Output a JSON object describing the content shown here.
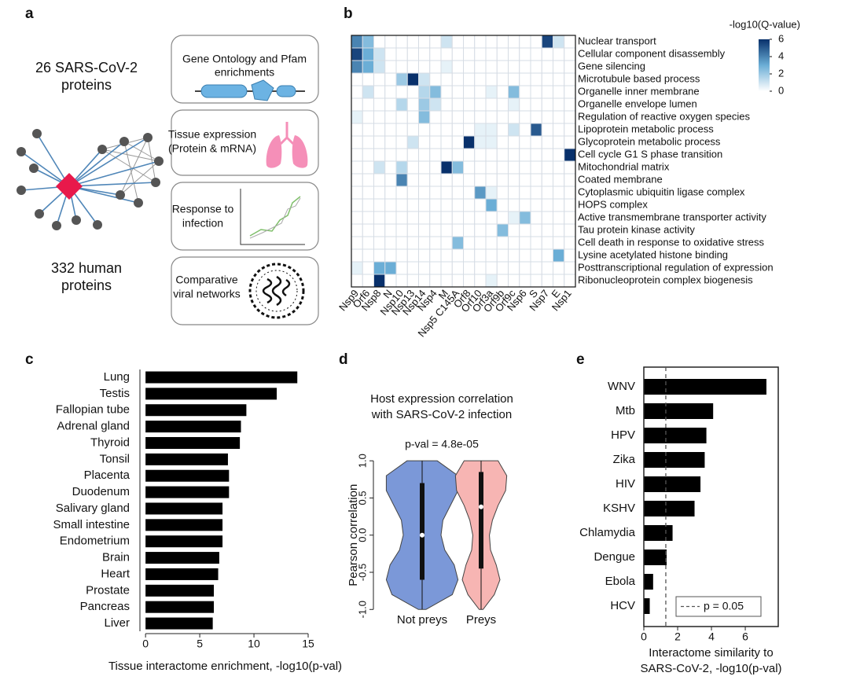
{
  "diagram": {
    "label": "a",
    "viral_proteins": [
      "26 SARS-CoV-2",
      "proteins"
    ],
    "human_proteins": [
      "332 human",
      "proteins"
    ],
    "boxes": [
      [
        "Gene Ontology and Pfam",
        "enrichments"
      ],
      [
        "Tissue expression",
        "(Protein & mRNA)"
      ],
      [
        "Response to",
        "infection"
      ],
      [
        "Comparative",
        "viral networks"
      ]
    ]
  },
  "chart_data": [
    {
      "type": "heatmap",
      "label": "b",
      "colorbar_title": "-log10(Q-value)",
      "rows": [
        "Nuclear transport",
        "Cellular component disassembly",
        "Gene silencing",
        "Microtubule based process",
        "Organelle inner membrane",
        "Organelle envelope lumen",
        "Regulation of reactive oxygen species",
        "Lipoprotein metabolic process",
        "Glycoprotein metabolic process",
        "Cell cycle G1 S phase transition",
        "Mitochondrial matrix",
        "Coated membrane",
        "Cytoplasmic ubiquitin ligase complex",
        "HOPS complex",
        "Active transmembrane transporter activity",
        "Tau protein kinase activity",
        "Cell death in response to oxidative stress",
        "Lysine acetylated histone binding",
        "Posttranscriptional regulation of expression",
        "Ribonucleoprotein complex biogenesis"
      ],
      "columns": [
        "Nsp9",
        "Orf6",
        "Nsp8",
        "N",
        "Nsp10",
        "Nsp13",
        "Nsp14",
        "Nsp4",
        "M",
        "Nsp5 C145A",
        "Orf8",
        "Orf10",
        "Orf3a",
        "Orf9b",
        "Orf9c",
        "Nsp6",
        "S",
        "Nsp7",
        "E",
        "Nsp1"
      ],
      "values": [
        [
          4,
          2.5,
          0,
          0,
          0,
          0,
          0,
          0,
          1,
          0,
          0,
          0,
          0,
          0,
          0,
          0,
          0,
          5.5,
          1,
          0
        ],
        [
          5.5,
          3,
          1,
          0,
          0,
          0,
          0,
          0,
          0,
          0,
          0,
          0,
          0,
          0,
          0,
          0,
          0,
          0,
          0,
          0
        ],
        [
          4,
          3,
          1,
          0,
          0,
          0,
          0,
          0,
          0.5,
          0,
          0,
          0,
          0,
          0,
          0,
          0,
          0,
          0,
          0,
          0
        ],
        [
          0,
          0,
          0,
          0,
          2,
          6,
          1,
          0,
          0,
          0,
          0,
          0,
          0,
          0,
          0,
          0,
          0,
          0,
          0,
          0
        ],
        [
          0,
          1,
          0,
          0,
          0,
          0,
          1.5,
          2.5,
          0,
          0,
          0,
          0,
          0.5,
          0,
          2.5,
          0,
          0,
          0,
          0,
          0
        ],
        [
          0,
          0,
          0,
          0,
          1.5,
          0,
          2,
          1,
          0,
          0,
          0,
          0,
          0,
          0,
          0.5,
          0,
          0,
          0,
          0,
          0
        ],
        [
          0.5,
          0,
          0,
          0,
          0,
          0,
          2.5,
          0,
          0,
          0,
          0,
          0,
          0,
          0,
          0,
          0,
          0,
          0,
          0,
          0
        ],
        [
          0,
          0,
          0,
          0,
          0,
          0,
          0,
          0,
          0,
          0,
          0,
          0.5,
          0.5,
          0,
          1,
          0,
          5,
          0,
          0,
          0
        ],
        [
          0,
          0,
          0,
          0,
          0,
          1,
          0,
          0,
          0,
          0,
          6,
          0.5,
          0.5,
          0,
          0,
          0,
          0,
          0,
          0,
          0
        ],
        [
          0,
          0,
          0,
          0,
          0,
          0,
          0,
          0,
          0,
          0,
          0,
          0,
          0,
          0,
          0,
          0,
          0,
          0,
          0,
          6
        ],
        [
          0,
          0,
          1,
          0,
          1.5,
          0,
          0,
          0,
          6,
          2.5,
          0,
          0,
          0,
          0,
          0,
          0,
          0,
          0,
          0,
          0
        ],
        [
          0,
          0,
          0,
          0,
          4,
          0,
          0,
          0,
          0,
          0,
          0,
          0,
          0,
          0,
          0,
          0,
          0,
          0,
          0,
          0
        ],
        [
          0,
          0,
          0,
          0,
          0,
          0,
          0,
          0,
          0,
          0,
          0,
          3.5,
          0.5,
          0,
          0,
          0,
          0,
          0,
          0,
          0
        ],
        [
          0,
          0,
          0,
          0,
          0,
          0,
          0,
          0,
          0,
          0,
          0,
          0,
          3,
          0,
          0,
          0,
          0,
          0,
          0,
          0
        ],
        [
          0,
          0,
          0,
          0,
          0,
          0,
          0,
          0,
          0,
          0,
          0,
          0,
          0,
          0,
          0.5,
          2.5,
          0,
          0,
          0,
          0
        ],
        [
          0,
          0,
          0,
          0,
          0,
          0,
          0,
          0,
          0,
          0,
          0,
          0,
          0,
          2.5,
          0,
          0,
          0,
          0,
          0,
          0
        ],
        [
          0,
          0,
          0,
          0,
          0,
          0,
          0,
          0,
          0,
          2.5,
          0,
          0,
          0,
          0,
          0,
          0,
          0,
          0,
          0,
          0
        ],
        [
          0,
          0,
          0,
          0,
          0,
          0,
          0,
          0,
          0,
          0,
          0,
          0,
          0,
          0,
          0,
          0,
          0,
          0,
          3,
          0
        ],
        [
          0.5,
          0,
          3,
          3,
          0,
          0,
          0,
          0,
          0,
          0,
          0,
          0,
          0,
          0,
          0,
          0,
          0,
          0,
          0,
          0
        ],
        [
          0,
          0,
          6,
          0,
          0,
          0,
          0,
          0,
          0,
          0,
          0,
          0,
          0.5,
          0,
          0,
          0,
          0,
          0,
          0,
          0
        ]
      ],
      "zlim": [
        0,
        6
      ],
      "zticks": [
        0,
        2,
        4,
        6
      ],
      "colors": [
        "#ffffff",
        "#6baed6",
        "#08306b"
      ]
    },
    {
      "type": "hbar",
      "label": "c",
      "xlabel": "Tissue interactome enrichment, -log10(p-val)",
      "categories": [
        "Lung",
        "Testis",
        "Fallopian tube",
        "Adrenal gland",
        "Thyroid",
        "Tonsil",
        "Placenta",
        "Duodenum",
        "Salivary gland",
        "Small intestine",
        "Endometrium",
        "Brain",
        "Heart",
        "Prostate",
        "Pancreas",
        "Liver"
      ],
      "values": [
        14.0,
        12.1,
        9.3,
        8.8,
        8.7,
        7.6,
        7.7,
        7.7,
        7.1,
        7.1,
        7.1,
        6.8,
        6.7,
        6.3,
        6.3,
        6.2
      ],
      "color": "#000000",
      "xlim": [
        -0.3,
        15
      ],
      "xticks": [
        0,
        5,
        10,
        15
      ]
    },
    {
      "type": "violin",
      "label": "d",
      "title": [
        "Host expression correlation",
        "with SARS-CoV-2 infection"
      ],
      "annotation": "p-val = 4.8e-05",
      "ylabel": "Pearson correlation",
      "categories": [
        "Not preys",
        "Preys"
      ],
      "profile_y": [
        -1,
        -0.8,
        -0.6,
        -0.4,
        -0.2,
        0,
        0.2,
        0.4,
        0.6,
        0.8,
        1.0
      ],
      "series": [
        {
          "name": "Not preys",
          "color": "#7b98d8",
          "widths": [
            0.1,
            0.8,
            0.95,
            0.85,
            0.6,
            0.5,
            0.55,
            0.75,
            0.95,
            0.95,
            0.4
          ],
          "min": -1,
          "q1": -0.6,
          "median": 0,
          "q3": 0.7,
          "max": 1
        },
        {
          "name": "Preys",
          "color": "#f7b5b3",
          "widths": [
            0.05,
            0.35,
            0.5,
            0.4,
            0.25,
            0.22,
            0.3,
            0.45,
            0.65,
            0.68,
            0.45
          ],
          "min": -1,
          "q1": -0.45,
          "median": 0.38,
          "q3": 0.85,
          "max": 1
        }
      ],
      "ylim": [
        -1.05,
        1.15
      ],
      "yticks": [
        {
          "value": -1,
          "label": "-1.0"
        },
        {
          "value": -0.5,
          "label": "-0.5"
        },
        {
          "value": 0,
          "label": "0.0"
        },
        {
          "value": 0.5,
          "label": "0.5"
        },
        {
          "value": 1,
          "label": "1.0"
        }
      ]
    },
    {
      "type": "hbar",
      "label": "e",
      "xlabel": [
        "Interactome similarity to",
        "SARS-CoV-2, -log10(p-val)"
      ],
      "categories": [
        "WNV",
        "Mtb",
        "HPV",
        "Zika",
        "HIV",
        "KSHV",
        "Chlamydia",
        "Dengue",
        "Ebola",
        "HCV"
      ],
      "values": [
        7.25,
        4.1,
        3.7,
        3.6,
        3.35,
        3.0,
        1.7,
        1.35,
        0.55,
        0.35
      ],
      "color": "#000000",
      "xlim": [
        0,
        7.95
      ],
      "xticks": [
        0,
        2,
        4,
        6
      ],
      "threshold": 1.3,
      "threshold_label": "p = 0.05"
    }
  ]
}
